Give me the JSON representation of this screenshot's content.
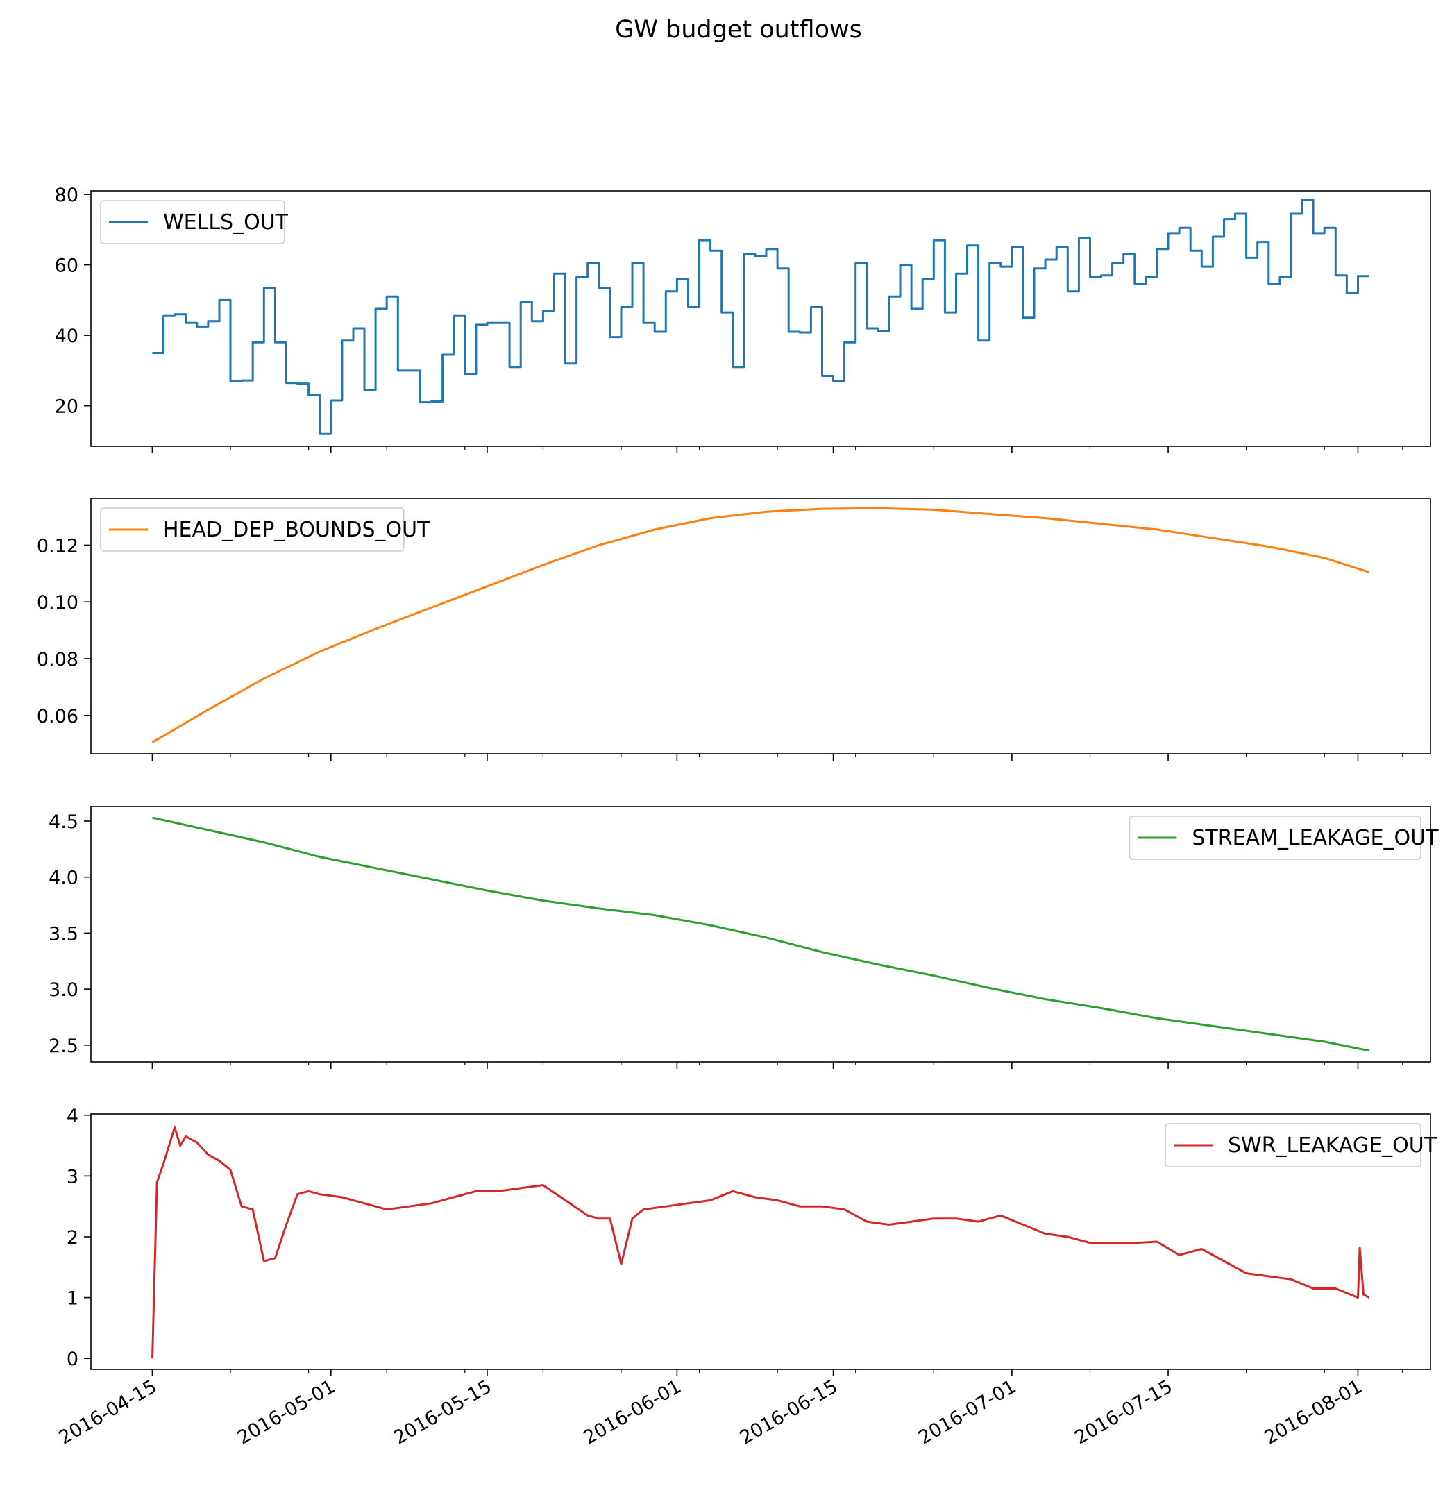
{
  "title": "GW budget outflows",
  "chart_data": [
    {
      "type": "line",
      "name": "WELLS_OUT",
      "color": "#1f77b4",
      "step": true,
      "legend": "upper-left",
      "ylim": [
        8.5,
        81
      ],
      "yticks": [
        20,
        40,
        60,
        80
      ],
      "x": [
        "2016-04-15",
        "2016-04-16",
        "2016-04-17",
        "2016-04-18",
        "2016-04-19",
        "2016-04-20",
        "2016-04-21",
        "2016-04-22",
        "2016-04-23",
        "2016-04-24",
        "2016-04-25",
        "2016-04-26",
        "2016-04-27",
        "2016-04-28",
        "2016-04-29",
        "2016-04-30",
        "2016-05-01",
        "2016-05-02",
        "2016-05-03",
        "2016-05-04",
        "2016-05-05",
        "2016-05-06",
        "2016-05-07",
        "2016-05-08",
        "2016-05-09",
        "2016-05-10",
        "2016-05-11",
        "2016-05-12",
        "2016-05-13",
        "2016-05-14",
        "2016-05-15",
        "2016-05-16",
        "2016-05-17",
        "2016-05-18",
        "2016-05-19",
        "2016-05-20",
        "2016-05-21",
        "2016-05-22",
        "2016-05-23",
        "2016-05-24",
        "2016-05-25",
        "2016-05-26",
        "2016-05-27",
        "2016-05-28",
        "2016-05-29",
        "2016-05-30",
        "2016-05-31",
        "2016-06-01",
        "2016-06-02",
        "2016-06-03",
        "2016-06-04",
        "2016-06-05",
        "2016-06-06",
        "2016-06-07",
        "2016-06-08",
        "2016-06-09",
        "2016-06-10",
        "2016-06-11",
        "2016-06-12",
        "2016-06-13",
        "2016-06-14",
        "2016-06-15",
        "2016-06-16",
        "2016-06-17",
        "2016-06-18",
        "2016-06-19",
        "2016-06-20",
        "2016-06-21",
        "2016-06-22",
        "2016-06-23",
        "2016-06-24",
        "2016-06-25",
        "2016-06-26",
        "2016-06-27",
        "2016-06-28",
        "2016-06-29",
        "2016-06-30",
        "2016-07-01",
        "2016-07-02",
        "2016-07-03",
        "2016-07-04",
        "2016-07-05",
        "2016-07-06",
        "2016-07-07",
        "2016-07-08",
        "2016-07-09",
        "2016-07-10",
        "2016-07-11",
        "2016-07-12",
        "2016-07-13",
        "2016-07-14",
        "2016-07-15",
        "2016-07-16",
        "2016-07-17",
        "2016-07-18",
        "2016-07-19",
        "2016-07-20",
        "2016-07-21",
        "2016-07-22",
        "2016-07-23",
        "2016-07-24",
        "2016-07-25",
        "2016-07-26",
        "2016-07-27",
        "2016-07-28",
        "2016-07-29",
        "2016-07-30",
        "2016-07-31",
        "2016-08-01",
        "2016-08-02"
      ],
      "values": [
        35,
        45.5,
        46,
        43.5,
        42.5,
        44,
        50,
        27,
        27.2,
        38,
        53.5,
        38,
        26.5,
        26.3,
        23,
        12,
        21.5,
        38.5,
        42,
        24.5,
        47.5,
        51,
        30,
        30,
        21,
        21.2,
        34.5,
        45.5,
        29,
        43,
        43.5,
        43.5,
        31,
        49.5,
        44,
        47,
        57.5,
        32,
        56.5,
        60.5,
        53.5,
        39.5,
        48,
        60.5,
        43.5,
        41,
        52.5,
        56,
        48,
        67,
        64,
        46.5,
        31,
        63,
        62.5,
        64.5,
        59,
        41,
        40.8,
        48,
        28.5,
        27,
        38,
        60.5,
        42,
        41.2,
        51,
        60,
        47.5,
        56,
        67,
        46.5,
        57.5,
        65.5,
        38.5,
        60.5,
        59.5,
        65,
        45,
        59,
        61.5,
        65,
        52.5,
        67.5,
        56.5,
        57,
        60.5,
        63,
        54.5,
        56.5,
        64.5,
        69,
        70.5,
        64,
        59.5,
        68,
        73,
        74.5,
        62,
        66.5,
        54.5,
        56.5,
        74.5,
        78.5,
        69,
        70.5,
        57,
        52,
        56.8,
        56.8
      ]
    },
    {
      "type": "line",
      "name": "HEAD_DEP_BOUNDS_OUT",
      "color": "#ff7f0e",
      "step": false,
      "legend": "upper-left",
      "ylim": [
        0.0465,
        0.1365
      ],
      "yticks": [
        0.06,
        0.08,
        0.1,
        0.12
      ],
      "x": [
        "2016-04-15",
        "2016-04-20",
        "2016-04-25",
        "2016-04-30",
        "2016-05-05",
        "2016-05-10",
        "2016-05-15",
        "2016-05-20",
        "2016-05-25",
        "2016-05-30",
        "2016-06-04",
        "2016-06-09",
        "2016-06-14",
        "2016-06-19",
        "2016-06-24",
        "2016-06-29",
        "2016-07-04",
        "2016-07-09",
        "2016-07-14",
        "2016-07-19",
        "2016-07-24",
        "2016-07-29",
        "2016-08-02"
      ],
      "values": [
        0.0505,
        0.062,
        0.073,
        0.0825,
        0.0905,
        0.098,
        0.1055,
        0.113,
        0.12,
        0.1255,
        0.1295,
        0.1318,
        0.1328,
        0.133,
        0.1325,
        0.131,
        0.1295,
        0.1275,
        0.1255,
        0.1225,
        0.1195,
        0.1155,
        0.1105
      ]
    },
    {
      "type": "line",
      "name": "STREAM_LEAKAGE_OUT",
      "color": "#2ca02c",
      "step": false,
      "legend": "upper-right",
      "ylim": [
        2.35,
        4.63
      ],
      "yticks": [
        2.5,
        3.0,
        3.5,
        4.0,
        4.5
      ],
      "x": [
        "2016-04-15",
        "2016-04-20",
        "2016-04-25",
        "2016-04-30",
        "2016-05-05",
        "2016-05-10",
        "2016-05-15",
        "2016-05-20",
        "2016-05-25",
        "2016-05-30",
        "2016-06-04",
        "2016-06-09",
        "2016-06-14",
        "2016-06-19",
        "2016-06-24",
        "2016-06-29",
        "2016-07-04",
        "2016-07-09",
        "2016-07-14",
        "2016-07-19",
        "2016-07-24",
        "2016-07-29",
        "2016-08-02"
      ],
      "values": [
        4.53,
        4.42,
        4.31,
        4.18,
        4.08,
        3.98,
        3.88,
        3.79,
        3.72,
        3.66,
        3.57,
        3.46,
        3.33,
        3.22,
        3.12,
        3.01,
        2.91,
        2.83,
        2.74,
        2.67,
        2.6,
        2.53,
        2.45
      ]
    },
    {
      "type": "line",
      "name": "SWR_LEAKAGE_OUT",
      "color": "#d62728",
      "step": false,
      "legend": "upper-right",
      "ylim": [
        -0.18,
        4.02
      ],
      "yticks": [
        0,
        1,
        2,
        3,
        4
      ],
      "x": [
        "2016-04-15",
        "2016-04-15T10",
        "2016-04-16",
        "2016-04-17",
        "2016-04-17T12",
        "2016-04-18",
        "2016-04-19",
        "2016-04-20",
        "2016-04-21",
        "2016-04-22",
        "2016-04-23",
        "2016-04-24",
        "2016-04-25",
        "2016-04-26",
        "2016-04-27",
        "2016-04-28",
        "2016-04-29",
        "2016-04-30",
        "2016-05-02",
        "2016-05-04",
        "2016-05-06",
        "2016-05-08",
        "2016-05-10",
        "2016-05-12",
        "2016-05-14",
        "2016-05-16",
        "2016-05-18",
        "2016-05-20",
        "2016-05-22",
        "2016-05-24",
        "2016-05-25",
        "2016-05-26",
        "2016-05-27",
        "2016-05-28",
        "2016-05-29",
        "2016-05-31",
        "2016-06-02",
        "2016-06-04",
        "2016-06-06",
        "2016-06-08",
        "2016-06-10",
        "2016-06-12",
        "2016-06-14",
        "2016-06-16",
        "2016-06-18",
        "2016-06-20",
        "2016-06-22",
        "2016-06-24",
        "2016-06-26",
        "2016-06-28",
        "2016-06-30",
        "2016-07-02",
        "2016-07-04",
        "2016-07-06",
        "2016-07-08",
        "2016-07-10",
        "2016-07-12",
        "2016-07-14",
        "2016-07-16",
        "2016-07-18",
        "2016-07-20",
        "2016-07-22",
        "2016-07-24",
        "2016-07-26",
        "2016-07-28",
        "2016-07-30",
        "2016-08-01",
        "2016-08-01T04",
        "2016-08-01T12",
        "2016-08-02"
      ],
      "values": [
        0,
        2.9,
        3.2,
        3.8,
        3.5,
        3.65,
        3.55,
        3.35,
        3.25,
        3.1,
        2.5,
        2.45,
        1.6,
        1.65,
        2.2,
        2.7,
        2.75,
        2.7,
        2.65,
        2.55,
        2.45,
        2.5,
        2.55,
        2.65,
        2.75,
        2.75,
        2.8,
        2.85,
        2.6,
        2.35,
        2.3,
        2.3,
        1.55,
        2.3,
        2.45,
        2.5,
        2.55,
        2.6,
        2.75,
        2.65,
        2.6,
        2.5,
        2.5,
        2.45,
        2.25,
        2.2,
        2.25,
        2.3,
        2.3,
        2.25,
        2.35,
        2.2,
        2.05,
        2,
        1.9,
        1.9,
        1.9,
        1.92,
        1.7,
        1.8,
        1.6,
        1.4,
        1.35,
        1.3,
        1.15,
        1.15,
        1.0,
        1.82,
        1.05,
        1.0
      ]
    }
  ],
  "x_axis": {
    "ticks": [
      "2016-04-15",
      "2016-05-01",
      "2016-05-15",
      "2016-06-01",
      "2016-06-15",
      "2016-07-01",
      "2016-07-15",
      "2016-08-01"
    ],
    "minor_ticks": [
      "2016-04-08",
      "2016-04-22",
      "2016-04-29",
      "2016-05-06",
      "2016-05-13",
      "2016-05-20",
      "2016-05-27",
      "2016-06-03",
      "2016-06-10",
      "2016-06-17",
      "2016-06-24",
      "2016-07-08",
      "2016-07-22",
      "2016-07-29",
      "2016-08-05"
    ],
    "range": [
      "2016-04-09T12",
      "2016-08-07T12"
    ]
  }
}
